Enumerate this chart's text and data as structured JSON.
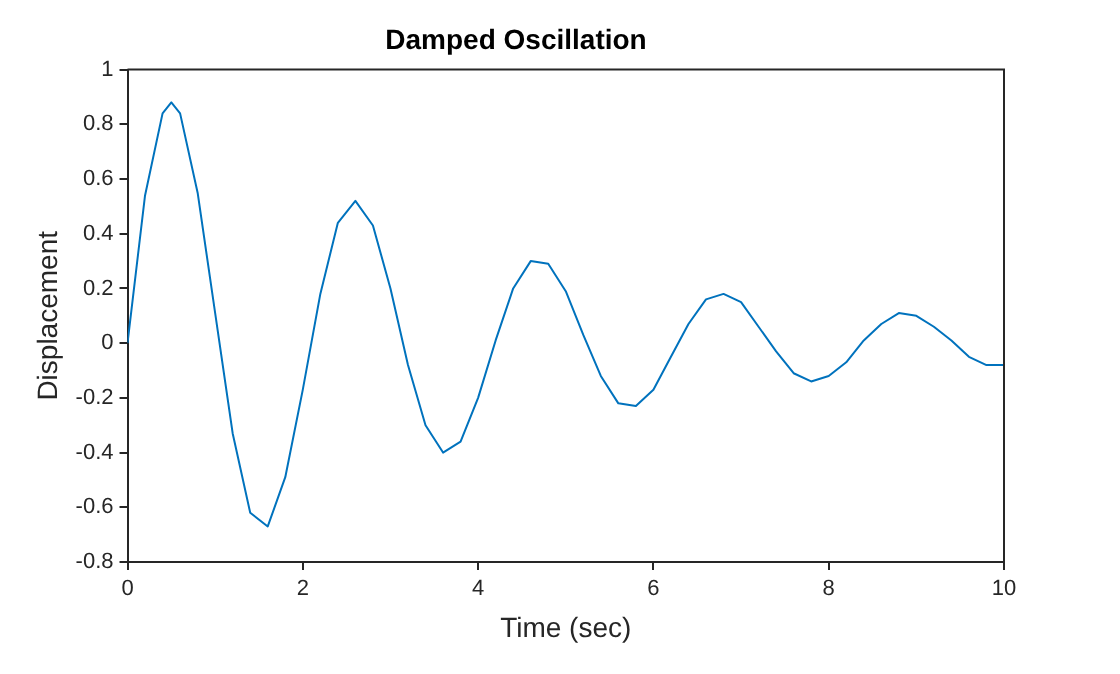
{
  "chart_data": {
    "type": "line",
    "title": "Damped Oscillation",
    "xlabel": "Time (sec)",
    "ylabel": "Displacement",
    "x": [
      0,
      0.2,
      0.4,
      0.5,
      0.6,
      0.8,
      1.0,
      1.2,
      1.4,
      1.6,
      1.8,
      2.0,
      2.2,
      2.4,
      2.6,
      2.8,
      3.0,
      3.2,
      3.4,
      3.6,
      3.8,
      4.0,
      4.2,
      4.4,
      4.6,
      4.8,
      5.0,
      5.2,
      5.4,
      5.6,
      5.8,
      6.0,
      6.2,
      6.4,
      6.6,
      6.8,
      7.0,
      7.2,
      7.4,
      7.6,
      7.8,
      8.0,
      8.2,
      8.4,
      8.6,
      8.8,
      9.0,
      9.2,
      9.4,
      9.6,
      9.8,
      10
    ],
    "series": [
      {
        "color": "#0072bd",
        "values": [
          0,
          0.54,
          0.84,
          0.88,
          0.84,
          0.55,
          0.11,
          -0.33,
          -0.62,
          -0.67,
          -0.49,
          -0.17,
          0.18,
          0.44,
          0.52,
          0.43,
          0.2,
          -0.08,
          -0.3,
          -0.4,
          -0.36,
          -0.2,
          0.01,
          0.2,
          0.3,
          0.29,
          0.19,
          0.03,
          -0.12,
          -0.22,
          -0.23,
          -0.17,
          -0.05,
          0.07,
          0.16,
          0.18,
          0.15,
          0.06,
          -0.03,
          -0.11,
          -0.14,
          -0.12,
          -0.07,
          0.01,
          0.07,
          0.11,
          0.1,
          0.06,
          0.01,
          -0.05,
          -0.08,
          -0.08
        ]
      }
    ],
    "xlim": [
      0,
      10
    ],
    "xticks": [
      0,
      2,
      4,
      6,
      8,
      10
    ],
    "ylim": [
      -0.8,
      1
    ],
    "yticks": [
      -0.8,
      -0.6,
      -0.4,
      -0.2,
      0,
      0.2,
      0.4,
      0.6,
      0.8,
      1
    ],
    "grid": false,
    "legend": false,
    "marker": "none",
    "line_style": "solid"
  }
}
